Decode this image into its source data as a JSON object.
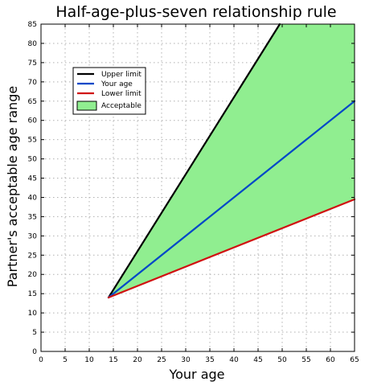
{
  "chart_data": {
    "type": "area",
    "title": "Half-age-plus-seven relationship rule",
    "xlabel": "Your age",
    "ylabel": "Partner's acceptable age range",
    "xlim": [
      0,
      65
    ],
    "ylim": [
      0,
      85
    ],
    "x_ticks": [
      0,
      5,
      10,
      15,
      20,
      25,
      30,
      35,
      40,
      45,
      50,
      55,
      60,
      65
    ],
    "y_ticks": [
      0,
      5,
      10,
      15,
      20,
      25,
      30,
      35,
      40,
      45,
      50,
      55,
      60,
      65,
      70,
      75,
      80,
      85
    ],
    "grid": true,
    "legend_position": "top-left",
    "series": [
      {
        "name": "Upper limit",
        "color": "#000000",
        "x": [
          14,
          49.5
        ],
        "y": [
          14,
          85
        ]
      },
      {
        "name": "Your age",
        "color": "#0047c8",
        "x": [
          14,
          65
        ],
        "y": [
          14,
          65
        ]
      },
      {
        "name": "Lower limit",
        "color": "#d01010",
        "x": [
          14,
          65
        ],
        "y": [
          14,
          39.5
        ]
      }
    ],
    "fill": {
      "name": "Acceptable",
      "color": "#90ee90",
      "border_color": "#000000",
      "between": [
        "Upper limit",
        "Lower limit"
      ]
    }
  }
}
